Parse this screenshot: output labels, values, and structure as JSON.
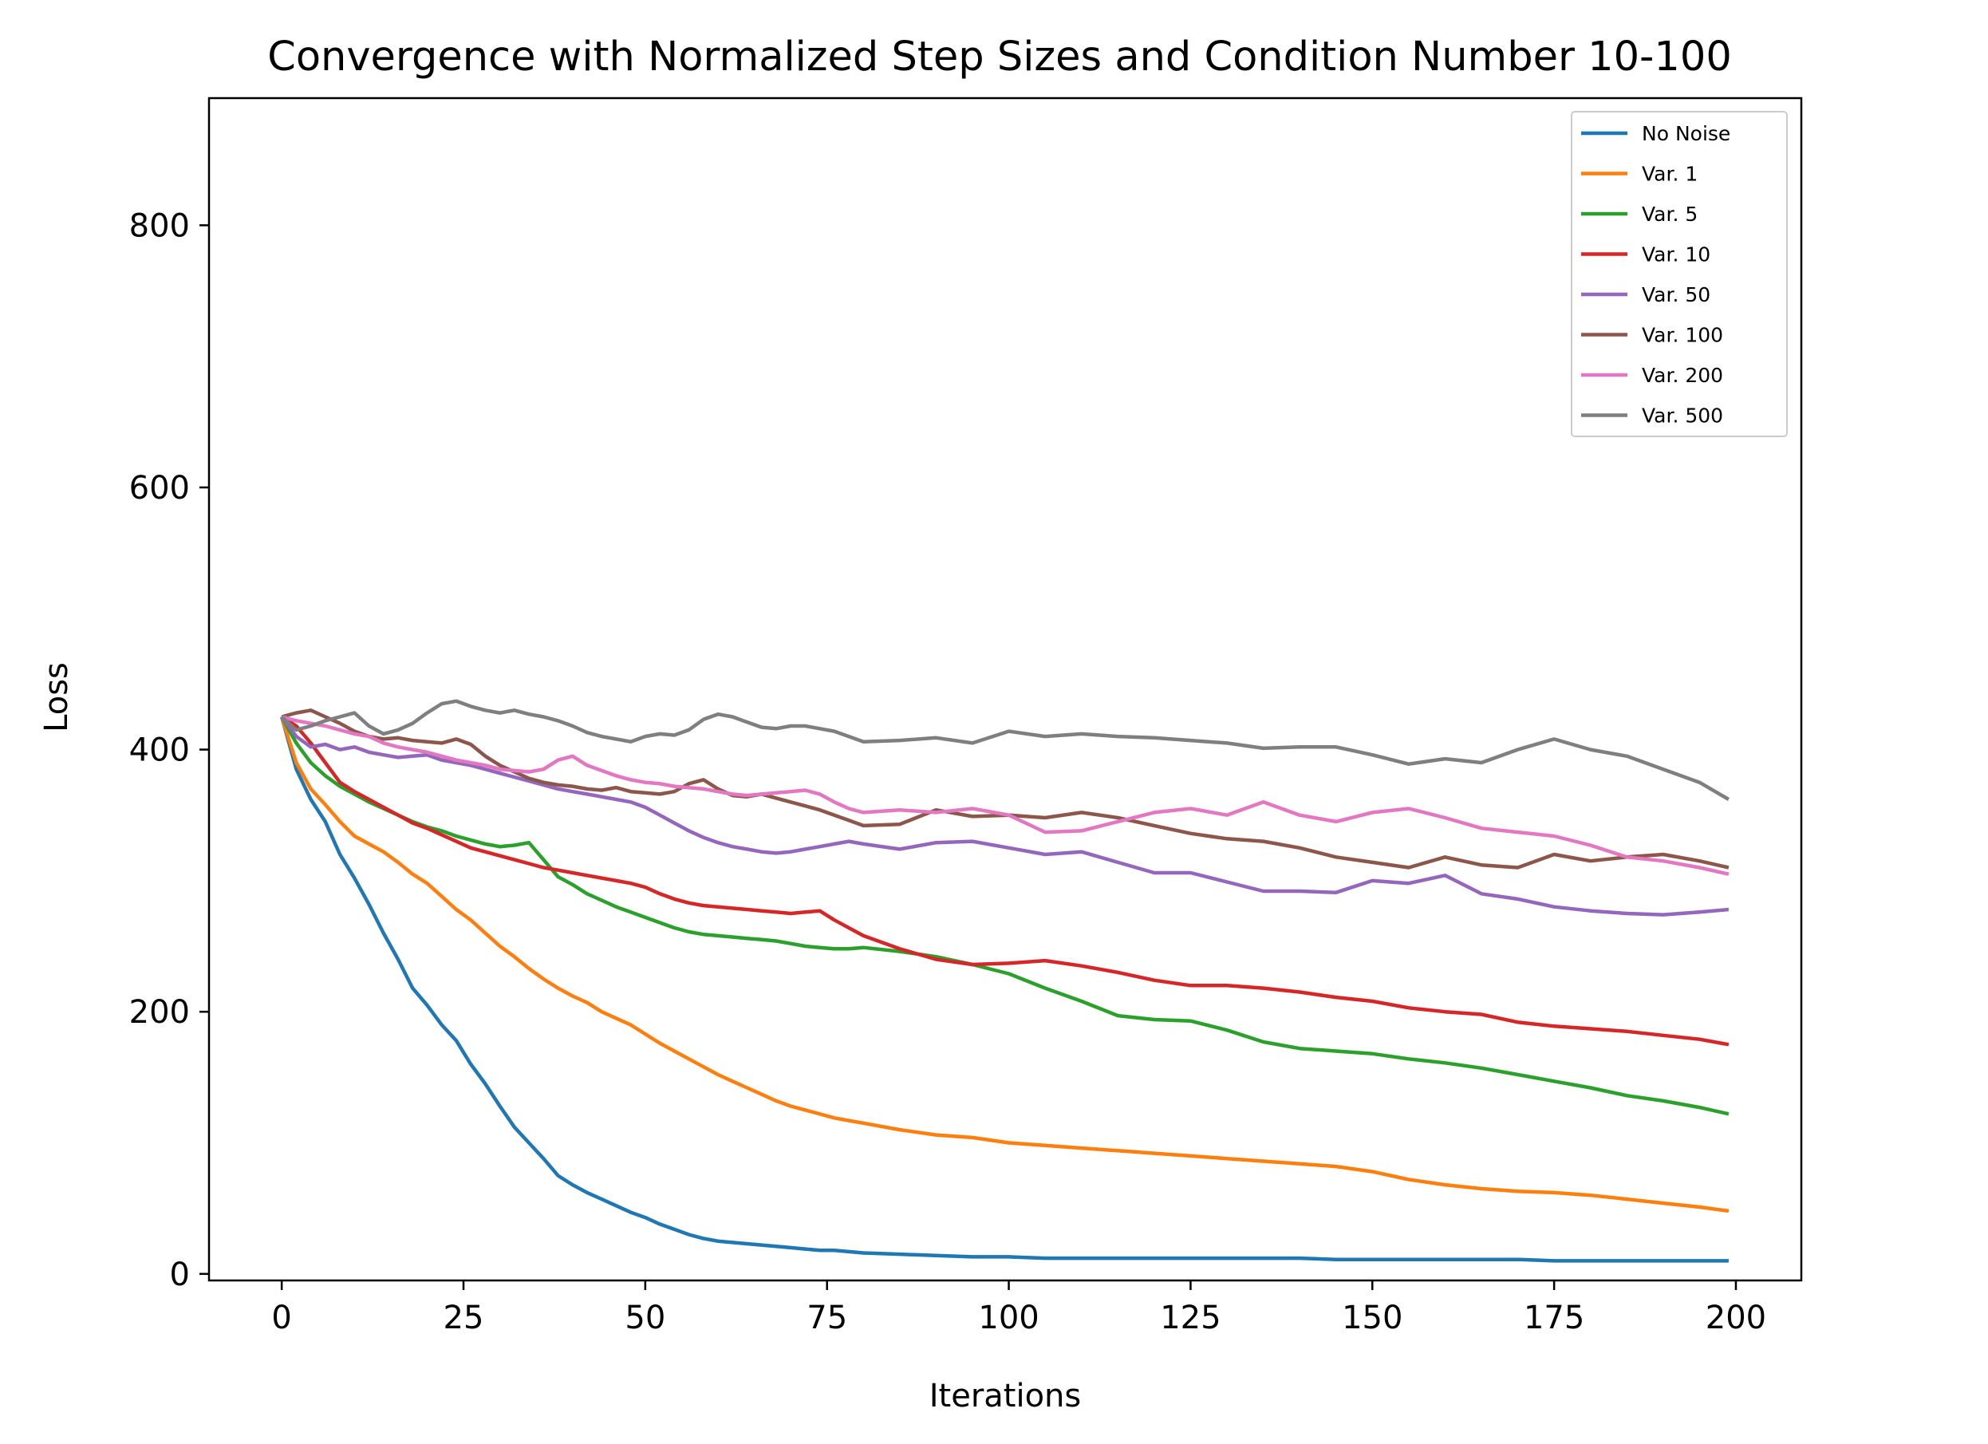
{
  "chart_data": {
    "type": "line",
    "title": "Convergence with Normalized Step Sizes and Condition Number 10-100",
    "xlabel": "Iterations",
    "ylabel": "Loss",
    "xlim": [
      -10,
      209
    ],
    "ylim": [
      -5,
      897
    ],
    "xticks": [
      0,
      25,
      50,
      75,
      100,
      125,
      150,
      175,
      200
    ],
    "yticks": [
      0,
      200,
      400,
      600,
      800
    ],
    "xtick_labels": [
      "0",
      "25",
      "50",
      "75",
      "100",
      "125",
      "150",
      "175",
      "200"
    ],
    "ytick_labels": [
      "0",
      "200",
      "400",
      "600",
      "800"
    ],
    "grid": false,
    "legend_position": "top-right",
    "series": [
      {
        "name": "No Noise",
        "color": "#1f77b4",
        "x": [
          0,
          2,
          4,
          6,
          8,
          10,
          12,
          14,
          16,
          18,
          20,
          22,
          24,
          26,
          28,
          30,
          32,
          34,
          36,
          38,
          40,
          42,
          44,
          46,
          48,
          50,
          52,
          54,
          56,
          58,
          60,
          62,
          64,
          66,
          68,
          70,
          72,
          74,
          76,
          78,
          80,
          85,
          90,
          95,
          100,
          105,
          110,
          115,
          120,
          125,
          130,
          135,
          140,
          145,
          150,
          155,
          160,
          165,
          170,
          175,
          180,
          185,
          190,
          195,
          199
        ],
        "y": [
          425,
          385,
          362,
          345,
          320,
          302,
          282,
          260,
          240,
          218,
          205,
          190,
          178,
          160,
          145,
          128,
          112,
          100,
          88,
          75,
          68,
          62,
          57,
          52,
          47,
          43,
          38,
          34,
          30,
          27,
          25,
          24,
          23,
          22,
          21,
          20,
          19,
          18,
          18,
          17,
          16,
          15,
          14,
          13,
          13,
          12,
          12,
          12,
          12,
          12,
          12,
          12,
          12,
          11,
          11,
          11,
          11,
          11,
          11,
          10,
          10,
          10,
          10,
          10,
          10
        ]
      },
      {
        "name": "Var. 1",
        "color": "#ff7f0e",
        "x": [
          0,
          2,
          4,
          6,
          8,
          10,
          12,
          14,
          16,
          18,
          20,
          22,
          24,
          26,
          28,
          30,
          32,
          34,
          36,
          38,
          40,
          42,
          44,
          46,
          48,
          50,
          52,
          54,
          56,
          58,
          60,
          62,
          64,
          66,
          68,
          70,
          72,
          74,
          76,
          78,
          80,
          85,
          90,
          95,
          100,
          105,
          110,
          115,
          120,
          125,
          130,
          135,
          140,
          145,
          150,
          155,
          160,
          165,
          170,
          175,
          180,
          185,
          190,
          195,
          199
        ],
        "y": [
          425,
          390,
          370,
          358,
          345,
          334,
          328,
          322,
          314,
          305,
          298,
          288,
          278,
          270,
          260,
          250,
          242,
          233,
          225,
          218,
          212,
          207,
          200,
          195,
          190,
          183,
          176,
          170,
          164,
          158,
          152,
          147,
          142,
          137,
          132,
          128,
          125,
          122,
          119,
          117,
          115,
          110,
          106,
          104,
          100,
          98,
          96,
          94,
          92,
          90,
          88,
          86,
          84,
          82,
          78,
          72,
          68,
          65,
          63,
          62,
          60,
          57,
          54,
          51,
          48
        ]
      },
      {
        "name": "Var. 5",
        "color": "#2ca02c",
        "x": [
          0,
          2,
          4,
          6,
          8,
          10,
          12,
          14,
          16,
          18,
          20,
          22,
          24,
          26,
          28,
          30,
          32,
          34,
          36,
          38,
          40,
          42,
          44,
          46,
          48,
          50,
          52,
          54,
          56,
          58,
          60,
          62,
          64,
          66,
          68,
          70,
          72,
          74,
          76,
          78,
          80,
          85,
          90,
          95,
          100,
          105,
          110,
          115,
          120,
          125,
          130,
          135,
          140,
          145,
          150,
          155,
          160,
          165,
          170,
          175,
          180,
          185,
          190,
          195,
          199
        ],
        "y": [
          425,
          405,
          390,
          380,
          372,
          366,
          360,
          355,
          350,
          345,
          341,
          338,
          334,
          331,
          328,
          326,
          327,
          329,
          316,
          303,
          297,
          290,
          285,
          280,
          276,
          272,
          268,
          264,
          261,
          259,
          258,
          257,
          256,
          255,
          254,
          252,
          250,
          249,
          248,
          248,
          249,
          246,
          242,
          236,
          229,
          218,
          208,
          197,
          194,
          193,
          186,
          177,
          172,
          170,
          168,
          164,
          161,
          157,
          152,
          147,
          142,
          136,
          132,
          127,
          122
        ]
      },
      {
        "name": "Var. 10",
        "color": "#d62728",
        "x": [
          0,
          2,
          4,
          6,
          8,
          10,
          12,
          14,
          16,
          18,
          20,
          22,
          24,
          26,
          28,
          30,
          32,
          34,
          36,
          38,
          40,
          42,
          44,
          46,
          48,
          50,
          52,
          54,
          56,
          58,
          60,
          62,
          64,
          66,
          68,
          70,
          72,
          74,
          76,
          78,
          80,
          85,
          90,
          95,
          100,
          105,
          110,
          115,
          120,
          125,
          130,
          135,
          140,
          145,
          150,
          155,
          160,
          165,
          170,
          175,
          180,
          185,
          190,
          195,
          199
        ],
        "y": [
          425,
          418,
          405,
          390,
          375,
          368,
          362,
          356,
          350,
          344,
          340,
          335,
          330,
          325,
          322,
          319,
          316,
          313,
          310,
          308,
          306,
          304,
          302,
          300,
          298,
          295,
          290,
          286,
          283,
          281,
          280,
          279,
          278,
          277,
          276,
          275,
          276,
          277,
          270,
          264,
          258,
          248,
          240,
          236,
          237,
          239,
          235,
          230,
          224,
          220,
          220,
          218,
          215,
          211,
          208,
          203,
          200,
          198,
          192,
          189,
          187,
          185,
          182,
          179,
          175
        ]
      },
      {
        "name": "Var. 50",
        "color": "#9467bd",
        "x": [
          0,
          2,
          4,
          6,
          8,
          10,
          12,
          14,
          16,
          18,
          20,
          22,
          24,
          26,
          28,
          30,
          32,
          34,
          36,
          38,
          40,
          42,
          44,
          46,
          48,
          50,
          52,
          54,
          56,
          58,
          60,
          62,
          64,
          66,
          68,
          70,
          72,
          74,
          76,
          78,
          80,
          85,
          90,
          95,
          100,
          105,
          110,
          115,
          120,
          125,
          130,
          135,
          140,
          145,
          150,
          155,
          160,
          165,
          170,
          175,
          180,
          185,
          190,
          195,
          199
        ],
        "y": [
          425,
          410,
          402,
          404,
          400,
          402,
          398,
          396,
          394,
          395,
          396,
          392,
          390,
          388,
          385,
          382,
          379,
          376,
          373,
          370,
          368,
          366,
          364,
          362,
          360,
          356,
          350,
          344,
          338,
          333,
          329,
          326,
          324,
          322,
          321,
          322,
          324,
          326,
          328,
          330,
          328,
          324,
          329,
          330,
          325,
          320,
          322,
          314,
          306,
          306,
          299,
          292,
          292,
          291,
          300,
          298,
          304,
          290,
          286,
          280,
          277,
          275,
          274,
          276,
          278
        ]
      },
      {
        "name": "Var. 100",
        "color": "#8c564b",
        "x": [
          0,
          2,
          4,
          6,
          8,
          10,
          12,
          14,
          16,
          18,
          20,
          22,
          24,
          26,
          28,
          30,
          32,
          34,
          36,
          38,
          40,
          42,
          44,
          46,
          48,
          50,
          52,
          54,
          56,
          58,
          60,
          62,
          64,
          66,
          68,
          70,
          72,
          74,
          76,
          78,
          80,
          85,
          90,
          95,
          100,
          105,
          110,
          115,
          120,
          125,
          130,
          135,
          140,
          145,
          150,
          155,
          160,
          165,
          170,
          175,
          180,
          185,
          190,
          195,
          199
        ],
        "y": [
          425,
          428,
          430,
          425,
          420,
          414,
          410,
          408,
          409,
          407,
          406,
          405,
          408,
          404,
          395,
          388,
          383,
          378,
          375,
          373,
          372,
          370,
          369,
          371,
          368,
          367,
          366,
          368,
          374,
          377,
          370,
          365,
          364,
          366,
          363,
          360,
          357,
          354,
          350,
          346,
          342,
          343,
          354,
          349,
          350,
          348,
          352,
          348,
          342,
          336,
          332,
          330,
          325,
          318,
          314,
          310,
          318,
          312,
          310,
          320,
          315,
          318,
          320,
          315,
          310
        ]
      },
      {
        "name": "Var. 200",
        "color": "#e377c2",
        "x": [
          0,
          2,
          4,
          6,
          8,
          10,
          12,
          14,
          16,
          18,
          20,
          22,
          24,
          26,
          28,
          30,
          32,
          34,
          36,
          38,
          40,
          42,
          44,
          46,
          48,
          50,
          52,
          54,
          56,
          58,
          60,
          62,
          64,
          66,
          68,
          70,
          72,
          74,
          76,
          78,
          80,
          85,
          90,
          95,
          100,
          105,
          110,
          115,
          120,
          125,
          130,
          135,
          140,
          145,
          150,
          155,
          160,
          165,
          170,
          175,
          180,
          185,
          190,
          195,
          199
        ],
        "y": [
          425,
          422,
          420,
          418,
          415,
          412,
          410,
          405,
          402,
          400,
          398,
          395,
          392,
          390,
          388,
          385,
          384,
          383,
          385,
          392,
          395,
          388,
          384,
          380,
          377,
          375,
          374,
          372,
          371,
          370,
          368,
          366,
          365,
          366,
          367,
          368,
          369,
          366,
          360,
          355,
          352,
          354,
          352,
          355,
          350,
          337,
          338,
          345,
          352,
          355,
          350,
          360,
          350,
          345,
          352,
          355,
          348,
          340,
          337,
          334,
          327,
          318,
          315,
          310,
          305
        ]
      },
      {
        "name": "Var. 500",
        "color": "#7f7f7f",
        "x": [
          0,
          2,
          4,
          6,
          8,
          10,
          12,
          14,
          16,
          18,
          20,
          22,
          24,
          26,
          28,
          30,
          32,
          34,
          36,
          38,
          40,
          42,
          44,
          46,
          48,
          50,
          52,
          54,
          56,
          58,
          60,
          62,
          64,
          66,
          68,
          70,
          72,
          74,
          76,
          78,
          80,
          85,
          90,
          95,
          100,
          105,
          110,
          115,
          120,
          125,
          130,
          135,
          140,
          145,
          150,
          155,
          160,
          165,
          170,
          175,
          180,
          185,
          190,
          195,
          199
        ],
        "y": [
          425,
          415,
          418,
          422,
          425,
          428,
          418,
          412,
          415,
          420,
          428,
          435,
          437,
          433,
          430,
          428,
          430,
          427,
          425,
          422,
          418,
          413,
          410,
          408,
          406,
          410,
          412,
          411,
          415,
          423,
          427,
          425,
          421,
          417,
          416,
          418,
          418,
          416,
          414,
          410,
          406,
          407,
          409,
          405,
          414,
          410,
          412,
          410,
          409,
          407,
          405,
          401,
          402,
          402,
          396,
          389,
          393,
          390,
          400,
          408,
          400,
          395,
          385,
          375,
          362
        ]
      }
    ]
  }
}
